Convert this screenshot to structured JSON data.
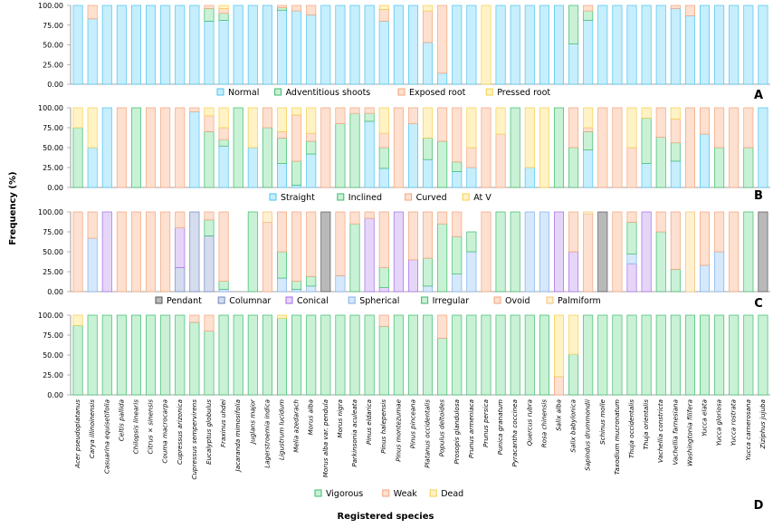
{
  "chart_data": {
    "type": "bar",
    "stacked": true,
    "ylabel": "Frequency (%)",
    "xlabel": "Registered species",
    "yticks": [
      "0.00",
      "25.00",
      "50.00",
      "75.00",
      "100.00"
    ],
    "ylim": [
      0,
      100
    ],
    "species": [
      "Acer pseudoplatanus",
      "Carya illinoinensis",
      "Casuarina equisetifolia",
      "Celtis pallida",
      "Chilopsis linearis",
      "Citrus × sinensis",
      "Couma macrocarpa",
      "Cupressus arizonica",
      "Cupressus sempervirens",
      "Eucalyptus globulus",
      "Fraxinus uhdei",
      "Jacaranda mimosifolia",
      "Juglans major",
      "Lagerstroemia indica",
      "Ligustrum lucidum",
      "Melia azedarach",
      "Morus alba",
      "Morus alba var. pendula",
      "Morus nigra",
      "Parkinsonia aculeata",
      "Pinus eldarica",
      "Pinus halepensis",
      "Pinus montezumae",
      "Pinus pinceana",
      "Platanus occidentalis",
      "Populus deltoides",
      "Prosopis glandulosa",
      "Prunus armeniaca",
      "Prunus persica",
      "Punica granatum",
      "Pyracantha coccinea",
      "Quercus rubra",
      "Rosa chinensis",
      "Salix alba",
      "Salix babylonica",
      "Sapindus drummondii",
      "Schinus molle",
      "Taxodium mucronatum",
      "Thuja occidentalis",
      "Thuja orientalis",
      "Vachellia constricta",
      "Vachellia farnesiana",
      "Washingtonia filifera",
      "Yucca elata",
      "Yucca gloriosa",
      "Yucca rostrata",
      "Yucca carnerosana",
      "Ziziphus jujuba"
    ],
    "panels": [
      {
        "label": "A",
        "series": [
          {
            "name": "Normal",
            "color": "#c6eefc",
            "stroke": "#4cc3ee",
            "values": [
              100,
              83,
              100,
              100,
              100,
              100,
              100,
              100,
              100,
              80,
              81,
              100,
              100,
              100,
              94,
              93,
              88,
              100,
              100,
              100,
              100,
              80,
              100,
              100,
              53,
              14,
              100,
              100,
              0,
              100,
              100,
              100,
              100,
              100,
              51,
              81,
              100,
              100,
              100,
              100,
              100,
              96,
              87,
              100,
              100,
              100,
              100,
              100
            ]
          },
          {
            "name": "Adventitious shoots",
            "color": "#c9f1d5",
            "stroke": "#3dbb6c",
            "values": [
              0,
              0,
              0,
              0,
              0,
              0,
              0,
              0,
              0,
              16,
              9,
              0,
              0,
              0,
              3,
              0,
              0,
              0,
              0,
              0,
              0,
              0,
              0,
              0,
              0,
              0,
              0,
              0,
              0,
              0,
              0,
              0,
              0,
              0,
              49,
              12,
              0,
              0,
              0,
              0,
              0,
              0,
              0,
              0,
              0,
              0,
              0,
              0
            ]
          },
          {
            "name": "Exposed root",
            "color": "#fde0cf",
            "stroke": "#f3a47b",
            "values": [
              0,
              17,
              0,
              0,
              0,
              0,
              0,
              0,
              0,
              4,
              6,
              0,
              0,
              0,
              3,
              7,
              12,
              0,
              0,
              0,
              0,
              15,
              0,
              0,
              40,
              86,
              0,
              0,
              0,
              0,
              0,
              0,
              0,
              0,
              0,
              7,
              0,
              0,
              0,
              0,
              0,
              4,
              13,
              0,
              0,
              0,
              0,
              0
            ]
          },
          {
            "name": "Pressed root",
            "color": "#fff3c6",
            "stroke": "#f5cf4a",
            "values": [
              0,
              0,
              0,
              0,
              0,
              0,
              0,
              0,
              0,
              0,
              4,
              0,
              0,
              0,
              0,
              0,
              0,
              0,
              0,
              0,
              0,
              5,
              0,
              0,
              7,
              0,
              0,
              0,
              100,
              0,
              0,
              0,
              0,
              0,
              0,
              0,
              0,
              0,
              0,
              0,
              0,
              0,
              0,
              0,
              0,
              0,
              0,
              0
            ]
          }
        ]
      },
      {
        "label": "B",
        "series": [
          {
            "name": "Straight",
            "color": "#c6eefc",
            "stroke": "#4cc3ee",
            "values": [
              0,
              50,
              100,
              0,
              0,
              0,
              0,
              0,
              95,
              0,
              52,
              0,
              50,
              0,
              30,
              3,
              42,
              0,
              0,
              0,
              83,
              24,
              0,
              80,
              35,
              0,
              20,
              25,
              0,
              0,
              0,
              25,
              0,
              0,
              0,
              47,
              0,
              0,
              0,
              30,
              0,
              33,
              0,
              67,
              0,
              0,
              0,
              100
            ]
          },
          {
            "name": "Inclined",
            "color": "#c9f1d5",
            "stroke": "#3dbb6c",
            "values": [
              75,
              0,
              0,
              0,
              100,
              0,
              0,
              0,
              0,
              70,
              8,
              100,
              0,
              75,
              32,
              30,
              16,
              0,
              80,
              93,
              10,
              26,
              0,
              0,
              27,
              58,
              12,
              0,
              0,
              0,
              100,
              0,
              0,
              100,
              50,
              23,
              0,
              0,
              0,
              57,
              63,
              23,
              0,
              0,
              50,
              0,
              50,
              0
            ]
          },
          {
            "name": "Curved",
            "color": "#fde0cf",
            "stroke": "#f3a47b",
            "values": [
              0,
              0,
              0,
              100,
              0,
              100,
              100,
              100,
              5,
              20,
              15,
              0,
              0,
              25,
              8,
              58,
              10,
              100,
              20,
              7,
              7,
              18,
              100,
              20,
              0,
              42,
              68,
              25,
              100,
              67,
              0,
              0,
              0,
              0,
              50,
              5,
              100,
              100,
              50,
              0,
              37,
              30,
              100,
              33,
              50,
              100,
              50,
              0
            ]
          },
          {
            "name": "At V",
            "color": "#fff3c6",
            "stroke": "#f5cf4a",
            "values": [
              25,
              50,
              0,
              0,
              0,
              0,
              0,
              0,
              0,
              10,
              25,
              0,
              50,
              0,
              30,
              9,
              32,
              0,
              0,
              0,
              0,
              32,
              0,
              0,
              38,
              0,
              0,
              50,
              0,
              33,
              0,
              75,
              100,
              0,
              0,
              25,
              0,
              0,
              50,
              13,
              0,
              14,
              0,
              0,
              0,
              0,
              0,
              0
            ]
          }
        ]
      },
      {
        "label": "C",
        "series": [
          {
            "name": "Pendant",
            "color": "#b9b9b9",
            "stroke": "#555555",
            "values": [
              0,
              0,
              0,
              0,
              0,
              0,
              0,
              0,
              0,
              0,
              0,
              0,
              0,
              0,
              0,
              0,
              0,
              100,
              0,
              0,
              0,
              0,
              0,
              0,
              0,
              0,
              0,
              0,
              0,
              0,
              0,
              0,
              0,
              0,
              0,
              0,
              100,
              0,
              0,
              0,
              0,
              0,
              0,
              0,
              0,
              0,
              0,
              100
            ]
          },
          {
            "name": "Columnar",
            "color": "#d4dced",
            "stroke": "#6f86bf",
            "values": [
              0,
              0,
              0,
              0,
              0,
              0,
              0,
              30,
              100,
              70,
              0,
              0,
              0,
              0,
              0,
              0,
              0,
              0,
              0,
              0,
              0,
              0,
              0,
              0,
              0,
              0,
              0,
              0,
              0,
              0,
              0,
              0,
              0,
              0,
              0,
              0,
              0,
              0,
              0,
              0,
              0,
              0,
              0,
              0,
              0,
              0,
              0,
              0
            ]
          },
          {
            "name": "Conical",
            "color": "#e5d6f8",
            "stroke": "#a56ae8",
            "values": [
              0,
              0,
              100,
              0,
              0,
              0,
              0,
              50,
              0,
              0,
              0,
              0,
              0,
              0,
              0,
              0,
              0,
              0,
              0,
              0,
              92,
              5,
              100,
              40,
              0,
              0,
              0,
              0,
              0,
              0,
              0,
              0,
              0,
              100,
              50,
              0,
              0,
              0,
              35,
              100,
              0,
              0,
              0,
              0,
              0,
              0,
              0,
              0
            ]
          },
          {
            "name": "Spherical",
            "color": "#d6e8fb",
            "stroke": "#7eb0ec",
            "values": [
              0,
              67,
              0,
              0,
              0,
              0,
              0,
              0,
              0,
              0,
              3,
              0,
              0,
              0,
              17,
              3,
              7,
              0,
              20,
              0,
              0,
              0,
              0,
              0,
              7,
              0,
              22,
              50,
              0,
              0,
              0,
              100,
              100,
              0,
              0,
              0,
              0,
              0,
              12,
              0,
              0,
              0,
              0,
              33,
              50,
              0,
              0,
              0
            ]
          },
          {
            "name": "Irregular",
            "color": "#c9f1d5",
            "stroke": "#3dbb6c",
            "values": [
              0,
              0,
              0,
              0,
              0,
              0,
              0,
              0,
              0,
              20,
              10,
              0,
              100,
              0,
              33,
              10,
              12,
              0,
              0,
              85,
              0,
              25,
              0,
              0,
              35,
              85,
              47,
              25,
              0,
              100,
              100,
              0,
              0,
              0,
              0,
              0,
              0,
              0,
              40,
              0,
              75,
              28,
              0,
              0,
              0,
              0,
              100,
              0
            ]
          },
          {
            "name": "Ovoid",
            "color": "#fde0cf",
            "stroke": "#f3a47b",
            "values": [
              100,
              33,
              0,
              100,
              100,
              100,
              100,
              20,
              0,
              10,
              87,
              0,
              0,
              87,
              50,
              87,
              81,
              0,
              80,
              15,
              8,
              70,
              0,
              60,
              58,
              15,
              31,
              0,
              100,
              0,
              0,
              0,
              0,
              0,
              50,
              97,
              0,
              100,
              13,
              0,
              25,
              72,
              0,
              67,
              50,
              100,
              0,
              0
            ]
          },
          {
            "name": "Palmiform",
            "color": "#fff0d0",
            "stroke": "#f4c27c",
            "values": [
              0,
              0,
              0,
              0,
              0,
              0,
              0,
              0,
              0,
              0,
              0,
              0,
              0,
              13,
              0,
              0,
              0,
              0,
              0,
              0,
              0,
              0,
              0,
              0,
              0,
              0,
              0,
              0,
              0,
              0,
              0,
              0,
              0,
              0,
              0,
              3,
              0,
              0,
              0,
              0,
              0,
              0,
              100,
              0,
              0,
              0,
              0,
              0
            ]
          }
        ]
      },
      {
        "label": "D",
        "series": [
          {
            "name": "Vigorous",
            "color": "#c9f1d5",
            "stroke": "#3dbb6c",
            "values": [
              87,
              100,
              100,
              100,
              100,
              100,
              100,
              100,
              91,
              80,
              100,
              100,
              100,
              100,
              96,
              100,
              100,
              100,
              100,
              100,
              100,
              86,
              100,
              100,
              100,
              71,
              100,
              100,
              100,
              100,
              100,
              100,
              100,
              0,
              51,
              100,
              100,
              100,
              100,
              100,
              100,
              100,
              100,
              100,
              100,
              100,
              100,
              100
            ]
          },
          {
            "name": "Weak",
            "color": "#fde0cf",
            "stroke": "#f3a47b",
            "values": [
              0,
              0,
              0,
              0,
              0,
              0,
              0,
              0,
              9,
              20,
              0,
              0,
              0,
              0,
              0,
              0,
              0,
              0,
              0,
              0,
              0,
              14,
              0,
              0,
              0,
              29,
              0,
              0,
              0,
              0,
              0,
              0,
              0,
              23,
              0,
              0,
              0,
              0,
              0,
              0,
              0,
              0,
              0,
              0,
              0,
              0,
              0,
              0
            ]
          },
          {
            "name": "Dead",
            "color": "#fff3c6",
            "stroke": "#f5cf4a",
            "values": [
              13,
              0,
              0,
              0,
              0,
              0,
              0,
              0,
              0,
              0,
              0,
              0,
              0,
              0,
              4,
              0,
              0,
              0,
              0,
              0,
              0,
              0,
              0,
              0,
              0,
              0,
              0,
              0,
              0,
              0,
              0,
              0,
              0,
              77,
              49,
              0,
              0,
              0,
              0,
              0,
              0,
              0,
              0,
              0,
              0,
              0,
              0,
              0
            ]
          }
        ]
      }
    ]
  }
}
